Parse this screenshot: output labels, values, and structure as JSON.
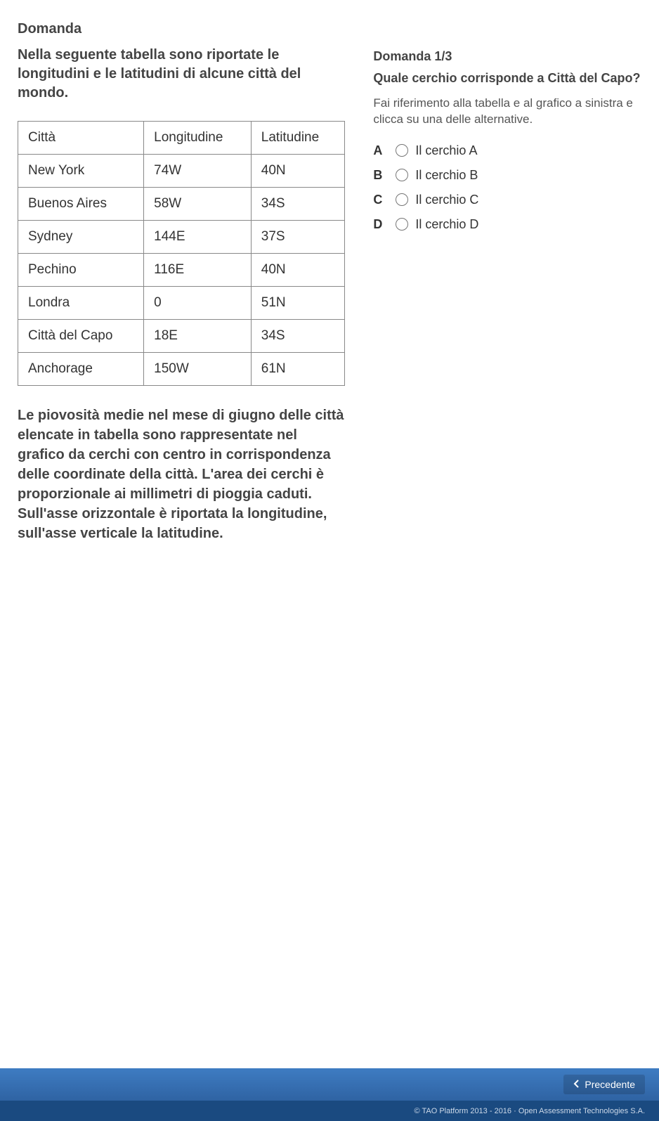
{
  "colors": {
    "page_bg": "#ffffff",
    "text": "#333333",
    "table_border": "#888888",
    "footer_top": "#3e7cc2",
    "footer_bottom": "#2f63a3",
    "credits_bg": "#1a4a80"
  },
  "left": {
    "section_head": "Domanda",
    "intro": "Nella seguente tabella sono riportate le longitudini e le latitudini di alcune città del mondo.",
    "table": {
      "columns": [
        "Città",
        "Longitudine",
        "Latitudine"
      ],
      "rows": [
        [
          "New York",
          "74W",
          "40N"
        ],
        [
          "Buenos Aires",
          "58W",
          "34S"
        ],
        [
          "Sydney",
          "144E",
          "37S"
        ],
        [
          "Pechino",
          "116E",
          "40N"
        ],
        [
          "Londra",
          "0",
          "51N"
        ],
        [
          "Città del Capo",
          "18E",
          "34S"
        ],
        [
          "Anchorage",
          "150W",
          "61N"
        ]
      ]
    },
    "body_text": "Le piovosità medie nel mese di giugno delle città elencate in tabella sono rappresentate nel grafico da cerchi con centro in corrispondenza delle coordinate della città. L'area dei cerchi è proporzionale ai millimetri di pioggia caduti. Sull'asse orizzontale è riportata la longitudine, sull'asse verticale la latitudine."
  },
  "right": {
    "counter": "Domanda 1/3",
    "title": "Quale cerchio corrisponde a Città del Capo?",
    "instruction": "Fai riferimento alla tabella e al grafico a sinistra e clicca su una delle alternative.",
    "options": [
      {
        "letter": "A",
        "label": "Il cerchio A"
      },
      {
        "letter": "B",
        "label": "Il cerchio B"
      },
      {
        "letter": "C",
        "label": "Il cerchio C"
      },
      {
        "letter": "D",
        "label": "Il cerchio D"
      }
    ]
  },
  "footer": {
    "prev_label": "Precedente",
    "credits": "© TAO Platform 2013 - 2016 · Open Assessment Technologies S.A."
  }
}
